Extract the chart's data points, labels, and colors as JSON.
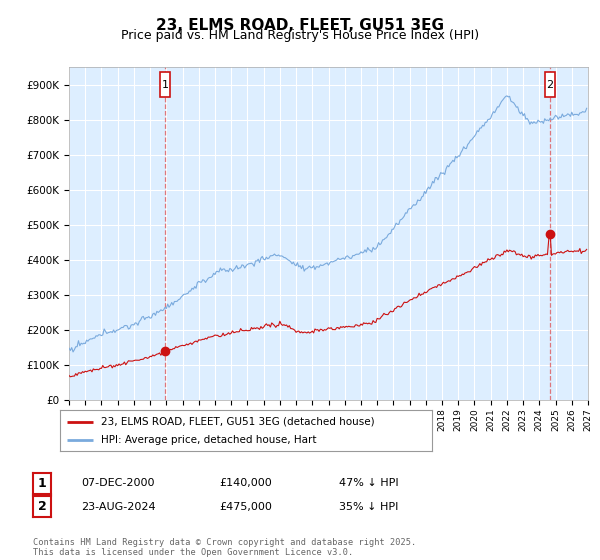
{
  "title": "23, ELMS ROAD, FLEET, GU51 3EG",
  "subtitle": "Price paid vs. HM Land Registry's House Price Index (HPI)",
  "title_fontsize": 11,
  "subtitle_fontsize": 9,
  "xlim": [
    1995.0,
    2027.0
  ],
  "ylim": [
    0,
    950000
  ],
  "yticks": [
    0,
    100000,
    200000,
    300000,
    400000,
    500000,
    600000,
    700000,
    800000,
    900000
  ],
  "ytick_labels": [
    "£0",
    "£100K",
    "£200K",
    "£300K",
    "£400K",
    "£500K",
    "£600K",
    "£700K",
    "£800K",
    "£900K"
  ],
  "hpi_color": "#7aaadd",
  "price_color": "#cc1111",
  "marker1_year": 2000.92,
  "marker1_price": 140000,
  "marker2_year": 2024.64,
  "marker2_price": 475000,
  "legend_line1": "23, ELMS ROAD, FLEET, GU51 3EG (detached house)",
  "legend_line2": "HPI: Average price, detached house, Hart",
  "table_row1": [
    "1",
    "07-DEC-2000",
    "£140,000",
    "47% ↓ HPI"
  ],
  "table_row2": [
    "2",
    "23-AUG-2024",
    "£475,000",
    "35% ↓ HPI"
  ],
  "footnote": "Contains HM Land Registry data © Crown copyright and database right 2025.\nThis data is licensed under the Open Government Licence v3.0.",
  "bg_color": "#ffffff",
  "plot_bg_color": "#ddeeff",
  "grid_color": "#ffffff",
  "vline_color": "#dd4444",
  "vline_style": "--"
}
